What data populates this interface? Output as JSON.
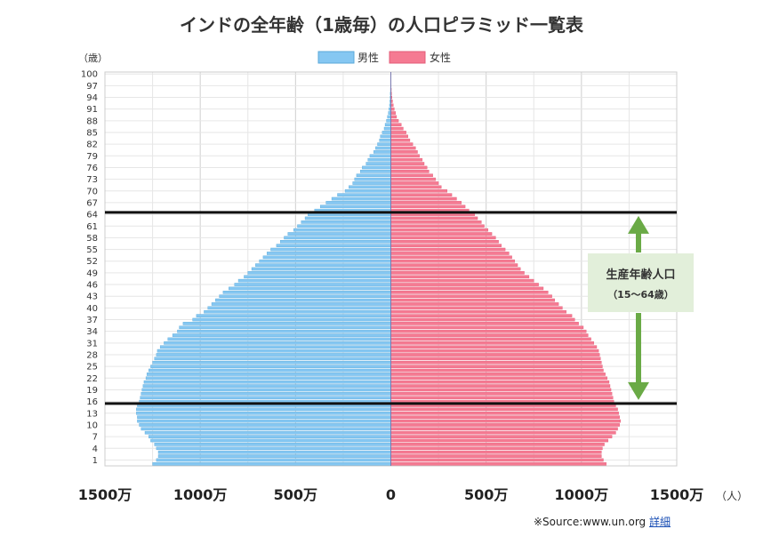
{
  "chart_data": {
    "type": "bar",
    "orientation": "horizontal",
    "title": "インドの全年齢（1歳毎）の人口ピラミッド一覧表",
    "y_unit_label": "（歳）",
    "x_unit_label": "（人）",
    "xlim": [
      -15000000,
      15000000
    ],
    "x_ticks": [
      {
        "value": -15000000,
        "label": "1500万"
      },
      {
        "value": -10000000,
        "label": "1000万"
      },
      {
        "value": -5000000,
        "label": "500万"
      },
      {
        "value": 0,
        "label": "0"
      },
      {
        "value": 5000000,
        "label": "500万"
      },
      {
        "value": 10000000,
        "label": "1000万"
      },
      {
        "value": 15000000,
        "label": "1500万"
      }
    ],
    "y_tick_labels": [
      "1",
      "4",
      "7",
      "10",
      "13",
      "16",
      "19",
      "22",
      "25",
      "28",
      "31",
      "34",
      "37",
      "40",
      "43",
      "46",
      "49",
      "52",
      "55",
      "58",
      "61",
      "64",
      "67",
      "70",
      "73",
      "76",
      "79",
      "82",
      "85",
      "88",
      "91",
      "94",
      "97",
      "100"
    ],
    "legend_position": "top-center",
    "grid": true,
    "ages": [
      0,
      1,
      2,
      3,
      4,
      5,
      6,
      7,
      8,
      9,
      10,
      11,
      12,
      13,
      14,
      15,
      16,
      17,
      18,
      19,
      20,
      21,
      22,
      23,
      24,
      25,
      26,
      27,
      28,
      29,
      30,
      31,
      32,
      33,
      34,
      35,
      36,
      37,
      38,
      39,
      40,
      41,
      42,
      43,
      44,
      45,
      46,
      47,
      48,
      49,
      50,
      51,
      52,
      53,
      54,
      55,
      56,
      57,
      58,
      59,
      60,
      61,
      62,
      63,
      64,
      65,
      66,
      67,
      68,
      69,
      70,
      71,
      72,
      73,
      74,
      75,
      76,
      77,
      78,
      79,
      80,
      81,
      82,
      83,
      84,
      85,
      86,
      87,
      88,
      89,
      90,
      91,
      92,
      93,
      94,
      95,
      96,
      97,
      98,
      99,
      100
    ],
    "series": [
      {
        "name": "男性",
        "color": "#85c7f2",
        "values": [
          12500000,
          12300000,
          12200000,
          12200000,
          12300000,
          12400000,
          12600000,
          12700000,
          12900000,
          13100000,
          13200000,
          13300000,
          13300000,
          13350000,
          13350000,
          13300000,
          13200000,
          13150000,
          13100000,
          13050000,
          13000000,
          12950000,
          12850000,
          12800000,
          12700000,
          12600000,
          12500000,
          12400000,
          12300000,
          12250000,
          12100000,
          11900000,
          11700000,
          11450000,
          11200000,
          11100000,
          10900000,
          10400000,
          10200000,
          9800000,
          9600000,
          9400000,
          9200000,
          9000000,
          8800000,
          8500000,
          8200000,
          8000000,
          7700000,
          7500000,
          7300000,
          7100000,
          6900000,
          6700000,
          6500000,
          6300000,
          6000000,
          5800000,
          5600000,
          5400000,
          5100000,
          4900000,
          4700000,
          4500000,
          4350000,
          4000000,
          3700000,
          3400000,
          3100000,
          2800000,
          2400000,
          2200000,
          2000000,
          1900000,
          1800000,
          1600000,
          1500000,
          1300000,
          1200000,
          1100000,
          900000,
          800000,
          700000,
          600000,
          550000,
          450000,
          350000,
          300000,
          230000,
          180000,
          130000,
          100000,
          70000,
          50000,
          40000,
          30000,
          20000,
          15000,
          10000,
          5000,
          2000
        ]
      },
      {
        "name": "女性",
        "color": "#f57a92",
        "values": [
          11300000,
          11150000,
          11050000,
          11050000,
          11100000,
          11200000,
          11400000,
          11600000,
          11800000,
          11900000,
          12000000,
          12050000,
          12000000,
          11950000,
          11900000,
          11800000,
          11700000,
          11650000,
          11600000,
          11550000,
          11500000,
          11450000,
          11350000,
          11250000,
          11150000,
          11100000,
          11050000,
          11000000,
          10950000,
          10900000,
          10800000,
          10650000,
          10500000,
          10350000,
          10250000,
          10100000,
          9850000,
          9650000,
          9500000,
          9200000,
          9000000,
          8800000,
          8600000,
          8450000,
          8250000,
          8000000,
          7750000,
          7500000,
          7250000,
          7000000,
          6800000,
          6650000,
          6500000,
          6350000,
          6200000,
          6000000,
          5800000,
          5650000,
          5500000,
          5300000,
          5100000,
          4900000,
          4750000,
          4550000,
          4400000,
          4100000,
          3900000,
          3700000,
          3450000,
          3200000,
          2950000,
          2650000,
          2500000,
          2350000,
          2200000,
          2000000,
          1900000,
          1750000,
          1650000,
          1500000,
          1400000,
          1300000,
          1150000,
          1000000,
          900000,
          800000,
          650000,
          550000,
          400000,
          300000,
          250000,
          180000,
          130000,
          90000,
          60000,
          40000,
          25000,
          15000,
          10000,
          5000,
          2000
        ]
      }
    ],
    "annotation": {
      "label": "生産年齢人口",
      "sublabel": "（15～64歳）",
      "age_range": [
        15,
        64
      ]
    }
  },
  "footer": {
    "source": "※Source:www.un.org",
    "detail_link": "詳細"
  }
}
